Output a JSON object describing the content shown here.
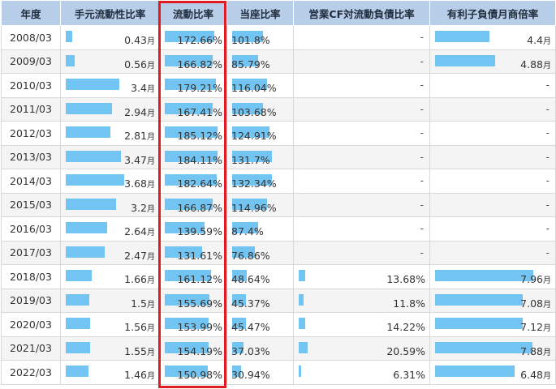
{
  "headers": [
    "年度",
    "手元流動性比率",
    "流動比率",
    "当座比率",
    "営業CF対流動負債比率",
    "有利子負債月商倍率"
  ],
  "unit_month": "月",
  "dash": "-",
  "colors": {
    "header_bg": "#b8cde7",
    "bar": "#72c4f3",
    "highlight": "#e11b22"
  },
  "rows": [
    {
      "year": "2008/03",
      "liquidity": "0.43",
      "current": "172.66%",
      "quick": "101.8%",
      "cf": "-",
      "debt": "4.4"
    },
    {
      "year": "2009/03",
      "liquidity": "0.56",
      "current": "166.82%",
      "quick": "85.79%",
      "cf": "-",
      "debt": "4.88"
    },
    {
      "year": "2010/03",
      "liquidity": "3.4",
      "current": "179.21%",
      "quick": "116.04%",
      "cf": "-",
      "debt": "-"
    },
    {
      "year": "2011/03",
      "liquidity": "2.94",
      "current": "167.41%",
      "quick": "103.68%",
      "cf": "-",
      "debt": "-"
    },
    {
      "year": "2012/03",
      "liquidity": "2.81",
      "current": "185.12%",
      "quick": "124.91%",
      "cf": "-",
      "debt": "-"
    },
    {
      "year": "2013/03",
      "liquidity": "3.47",
      "current": "184.11%",
      "quick": "131.7%",
      "cf": "-",
      "debt": "-"
    },
    {
      "year": "2014/03",
      "liquidity": "3.68",
      "current": "182.64%",
      "quick": "132.34%",
      "cf": "-",
      "debt": "-"
    },
    {
      "year": "2015/03",
      "liquidity": "3.2",
      "current": "166.87%",
      "quick": "114.96%",
      "cf": "-",
      "debt": "-"
    },
    {
      "year": "2016/03",
      "liquidity": "2.64",
      "current": "139.59%",
      "quick": "87.4%",
      "cf": "-",
      "debt": "-"
    },
    {
      "year": "2017/03",
      "liquidity": "2.47",
      "current": "131.61%",
      "quick": "76.86%",
      "cf": "-",
      "debt": "-"
    },
    {
      "year": "2018/03",
      "liquidity": "1.66",
      "current": "161.12%",
      "quick": "48.64%",
      "cf": "13.68%",
      "debt": "7.96"
    },
    {
      "year": "2019/03",
      "liquidity": "1.5",
      "current": "155.69%",
      "quick": "45.37%",
      "cf": "11.8%",
      "debt": "7.08"
    },
    {
      "year": "2020/03",
      "liquidity": "1.56",
      "current": "153.99%",
      "quick": "45.47%",
      "cf": "14.22%",
      "debt": "7.12"
    },
    {
      "year": "2021/03",
      "liquidity": "1.55",
      "current": "154.19%",
      "quick": "37.03%",
      "cf": "20.59%",
      "debt": "7.88"
    },
    {
      "year": "2022/03",
      "liquidity": "1.46",
      "current": "150.98%",
      "quick": "30.94%",
      "cf": "6.31%",
      "debt": "6.48"
    }
  ]
}
